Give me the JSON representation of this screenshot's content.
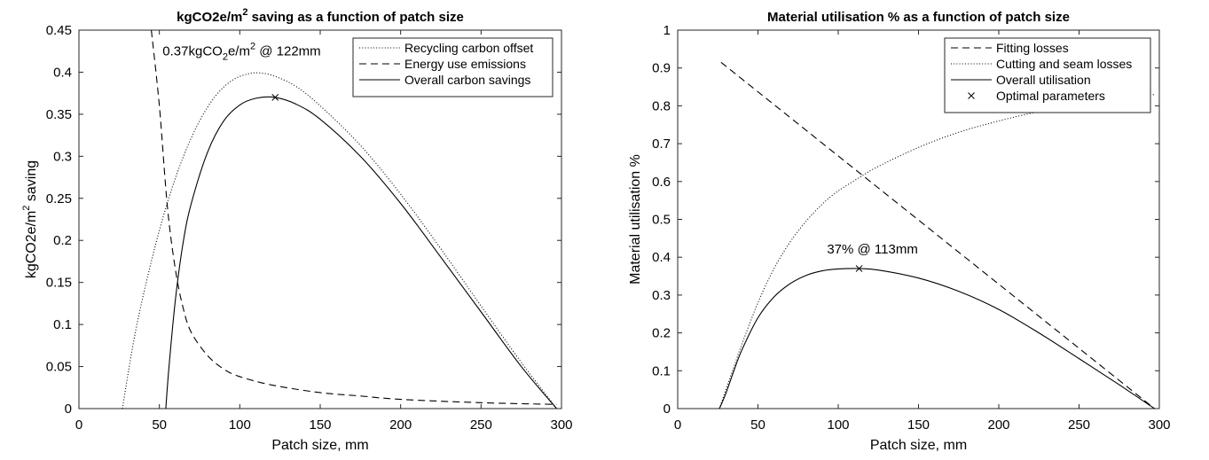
{
  "chart_data": [
    {
      "type": "line",
      "title_main": "kgCO2e/m",
      "title_sup": "2",
      "title_rest": " saving as a function of patch size",
      "xlabel": "Patch size, mm",
      "ylabel_main": "kgCO2e/m",
      "ylabel_sup": "2",
      "ylabel_rest": " saving",
      "xlim": [
        0,
        300
      ],
      "ylim": [
        0,
        0.45
      ],
      "xticks": [
        0,
        50,
        100,
        150,
        200,
        250,
        300
      ],
      "yticks": [
        0,
        0.05,
        0.1,
        0.15,
        0.2,
        0.25,
        0.3,
        0.35,
        0.4,
        0.45
      ],
      "ytick_labels": [
        "0",
        "0.05",
        "0.1",
        "0.15",
        "0.2",
        "0.25",
        "0.3",
        "0.35",
        "0.4",
        "0.45"
      ],
      "grid": false,
      "legend_position": "top-right",
      "annotation": {
        "prefix": "0.37kgCO",
        "sub": "2",
        "middle": "e/m",
        "sup": "2",
        "suffix": " @ 122mm",
        "x": 52,
        "y": 0.42
      },
      "marker": {
        "x": 122,
        "y": 0.37
      },
      "series": [
        {
          "name": "Recycling carbon offset",
          "style": "dotted",
          "x": [
            27,
            35,
            45,
            55,
            65,
            75,
            85,
            95,
            105,
            113,
            122,
            135,
            150,
            175,
            200,
            225,
            250,
            275,
            297
          ],
          "y": [
            0,
            0.09,
            0.175,
            0.245,
            0.3,
            0.342,
            0.372,
            0.39,
            0.398,
            0.399,
            0.395,
            0.383,
            0.36,
            0.313,
            0.255,
            0.19,
            0.122,
            0.055,
            0
          ]
        },
        {
          "name": "Energy use emissions",
          "style": "dashed",
          "x": [
            45,
            50,
            55,
            60,
            65,
            70,
            80,
            90,
            100,
            120,
            150,
            175,
            200,
            250,
            297
          ],
          "y": [
            0.45,
            0.36,
            0.24,
            0.165,
            0.118,
            0.09,
            0.063,
            0.047,
            0.038,
            0.028,
            0.019,
            0.015,
            0.011,
            0.007,
            0.005
          ]
        },
        {
          "name": "Overall carbon savings",
          "style": "solid",
          "x": [
            54,
            56,
            60,
            65,
            70,
            80,
            90,
            100,
            110,
            122,
            135,
            150,
            175,
            200,
            225,
            250,
            275,
            297
          ],
          "y": [
            0,
            0.05,
            0.13,
            0.2,
            0.245,
            0.305,
            0.342,
            0.361,
            0.369,
            0.37,
            0.362,
            0.344,
            0.3,
            0.244,
            0.18,
            0.115,
            0.05,
            0
          ]
        }
      ]
    },
    {
      "type": "line",
      "title": "Material utilisation % as a function of patch size",
      "xlabel": "Patch size, mm",
      "ylabel": "Material utilisation %",
      "xlim": [
        0,
        300
      ],
      "ylim": [
        0,
        1
      ],
      "xticks": [
        0,
        50,
        100,
        150,
        200,
        250,
        300
      ],
      "yticks": [
        0,
        0.1,
        0.2,
        0.3,
        0.4,
        0.5,
        0.6,
        0.7,
        0.8,
        0.9,
        1
      ],
      "ytick_labels": [
        "0",
        "0.1",
        "0.2",
        "0.3",
        "0.4",
        "0.5",
        "0.6",
        "0.7",
        "0.8",
        "0.9",
        "1"
      ],
      "grid": false,
      "legend_position": "top-right",
      "annotation": {
        "text": "37% @ 113mm",
        "x": 93,
        "y": 0.41
      },
      "marker": {
        "x": 113,
        "y": 0.37
      },
      "legend_marker_label": "Optimal parameters",
      "series": [
        {
          "name": "Fitting losses",
          "style": "dashed",
          "x": [
            27,
            297
          ],
          "y": [
            0.915,
            0
          ]
        },
        {
          "name": "Cutting and seam losses",
          "style": "dotted",
          "x": [
            26,
            30,
            35,
            40,
            50,
            60,
            70,
            80,
            90,
            100,
            113,
            125,
            150,
            175,
            200,
            225,
            250,
            275,
            297
          ],
          "y": [
            0,
            0.05,
            0.11,
            0.17,
            0.28,
            0.37,
            0.44,
            0.495,
            0.54,
            0.575,
            0.61,
            0.64,
            0.69,
            0.73,
            0.76,
            0.785,
            0.805,
            0.82,
            0.83
          ]
        },
        {
          "name": "Overall utilisation",
          "style": "solid",
          "x": [
            26,
            30,
            35,
            40,
            50,
            60,
            70,
            80,
            90,
            100,
            113,
            125,
            150,
            175,
            200,
            225,
            250,
            275,
            297
          ],
          "y": [
            0,
            0.04,
            0.1,
            0.155,
            0.24,
            0.295,
            0.33,
            0.352,
            0.364,
            0.369,
            0.37,
            0.366,
            0.345,
            0.31,
            0.262,
            0.2,
            0.132,
            0.063,
            0
          ]
        }
      ]
    }
  ]
}
